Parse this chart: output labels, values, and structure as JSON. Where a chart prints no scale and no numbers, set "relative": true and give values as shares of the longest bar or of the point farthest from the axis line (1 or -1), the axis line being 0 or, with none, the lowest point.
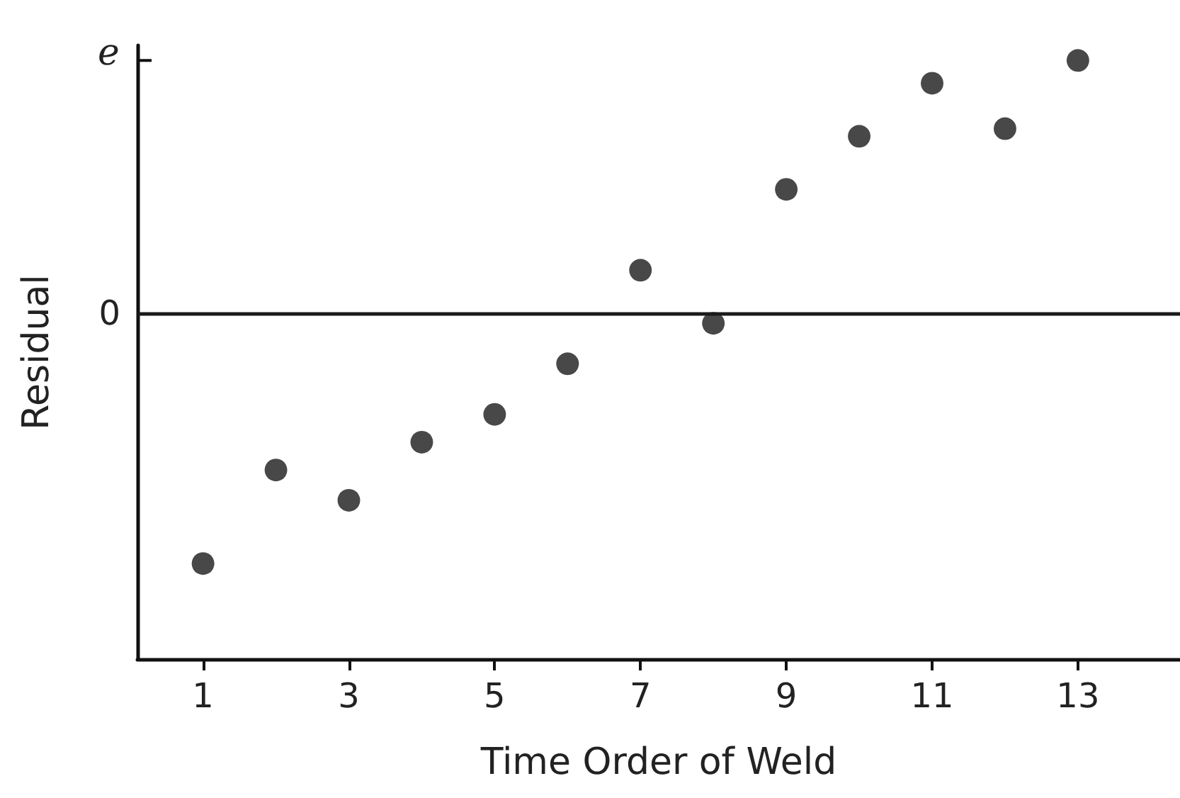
{
  "chart_data": {
    "type": "scatter",
    "relative": true,
    "xlabel": "Time Order of Weld",
    "ylabel": "Residual",
    "x": [
      1,
      2,
      3,
      4,
      5,
      6,
      7,
      8,
      9,
      10,
      11,
      12,
      13
    ],
    "values": [
      -0.99,
      -0.62,
      -0.74,
      -0.51,
      -0.4,
      -0.2,
      0.17,
      -0.04,
      0.49,
      0.7,
      0.91,
      0.73,
      1.0
    ],
    "color": "#1a1a1a",
    "marker": "circle",
    "xlim": [
      0.1,
      14.4
    ],
    "xticks": [
      1,
      3,
      5,
      7,
      9,
      11,
      13
    ],
    "ref_lines": [
      {
        "axis": "y",
        "value": 0,
        "label": "0",
        "color": "#1a1a1a"
      }
    ],
    "annotations": [
      "e"
    ],
    "grid": false
  }
}
